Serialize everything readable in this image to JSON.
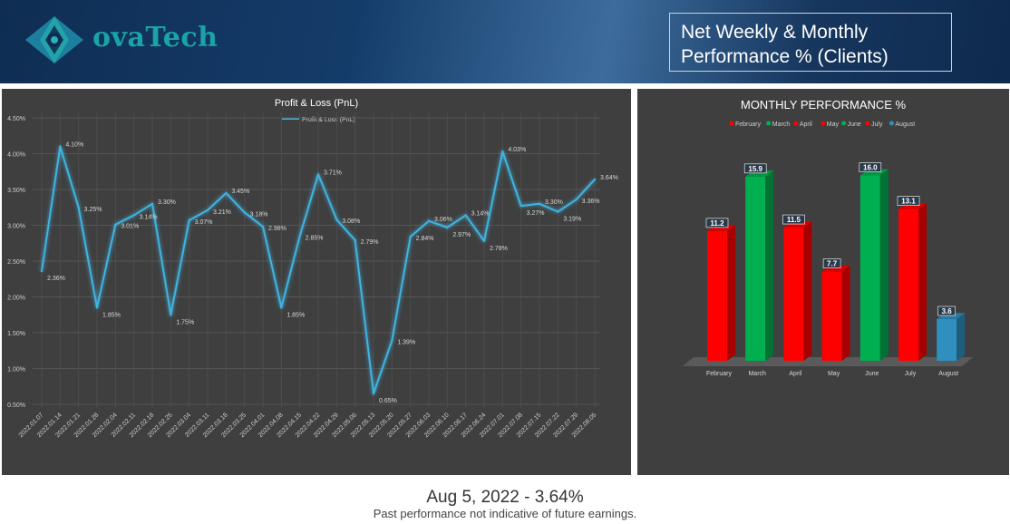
{
  "brand": {
    "logo_text": "ovaTech"
  },
  "header": {
    "title_line1": "Net Weekly & Monthly",
    "title_line2": "Performance % (Clients)"
  },
  "footer": {
    "headline": "Aug 5, 2022 - 3.64%",
    "disclaimer": "Past performance not indicative of future earnings."
  },
  "colors": {
    "line": "#3fb3e0",
    "green": "#00b050",
    "red": "#ff0000",
    "blue": "#2f8fbf",
    "panel": "#3f3f3f"
  },
  "chart_data": [
    {
      "type": "line",
      "title": "Profit & Loss (PnL)",
      "legend": "top-center",
      "series": [
        {
          "name": "Profit & Loss (PnL)",
          "x": [
            "2022.01.07",
            "2022.01.14",
            "2022.01.21",
            "2022.01.28",
            "2022.02.04",
            "2022.02.11",
            "2022.02.18",
            "2022.02.25",
            "2022.03.04",
            "2022.03.11",
            "2022.03.18",
            "2022.03.25",
            "2022.04.01",
            "2022.04.08",
            "2022.04.15",
            "2022.04.22",
            "2022.04.29",
            "2022.05.06",
            "2022.05.13",
            "2022.05.20",
            "2022.05.27",
            "2022.06.03",
            "2022.06.10",
            "2022.06.17",
            "2022.06.24",
            "2022.07.01",
            "2022.07.08",
            "2022.07.15",
            "2022.07.22",
            "2022.07.29",
            "2022.08.05"
          ],
          "values": [
            2.36,
            4.1,
            3.25,
            1.85,
            3.01,
            3.14,
            3.3,
            1.75,
            3.07,
            3.21,
            3.45,
            3.18,
            2.98,
            1.85,
            2.85,
            3.71,
            3.08,
            2.79,
            0.65,
            1.39,
            2.84,
            3.06,
            2.97,
            3.14,
            2.78,
            4.03,
            3.27,
            3.3,
            3.19,
            3.36,
            3.64
          ],
          "labels": [
            "2.36%",
            "4.10%",
            "3.25%",
            "1.85%",
            "3.01%",
            "3.14%",
            "3.30%",
            "1.75%",
            "3.07%",
            "3.21%",
            "3.45%",
            "3.18%",
            "2.98%",
            "1.85%",
            "2.85%",
            "3.71%",
            "3.08%",
            "2.79%",
            "0.65%",
            "1.39%",
            "2.84%",
            "3.06%",
            "2.97%",
            "3.14%",
            "2.78%",
            "4.03%",
            "3.27%",
            "3.30%",
            "3.19%",
            "3.36%",
            "3.64%"
          ]
        }
      ],
      "y_ticks": [
        "4.50%",
        "4.00%",
        "3.50%",
        "3.00%",
        "2.50%",
        "2.00%",
        "1.50%",
        "1.00%",
        "0.50%"
      ],
      "ylim": [
        0.5,
        4.5
      ],
      "grid": true
    },
    {
      "type": "bar",
      "title": "MONTHLY PERFORMANCE %",
      "legend": "top-center",
      "categories": [
        "February",
        "March",
        "April",
        "May",
        "June",
        "July",
        "August"
      ],
      "values": [
        11.2,
        15.9,
        11.5,
        7.7,
        16.0,
        13.1,
        3.6
      ],
      "labels": [
        "11.2",
        "15.9",
        "11.5",
        "7.7",
        "16.0",
        "13.1",
        "3.6"
      ],
      "bar_colors": [
        "#ff0000",
        "#00b050",
        "#ff0000",
        "#ff0000",
        "#00b050",
        "#ff0000",
        "#2f8fbf"
      ],
      "ylim": [
        0,
        18
      ]
    }
  ]
}
